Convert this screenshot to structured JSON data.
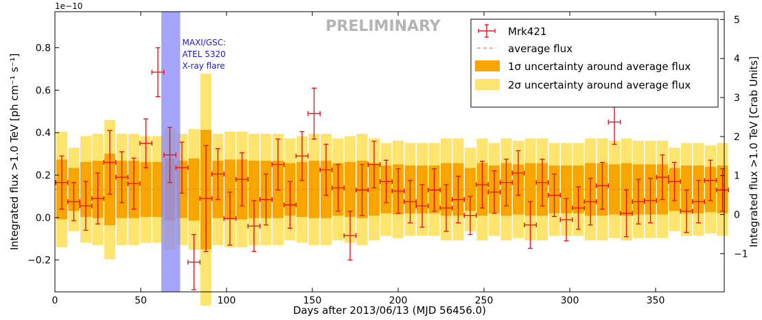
{
  "chart_data": {
    "type": "scatter",
    "title": "",
    "watermark": "PRELIMINARY",
    "xlabel": "Days after 2013/06/13 (MJD 56456.0)",
    "ylabel_left": "Integrated flux >1.0 TeV [ph cm⁻¹ s⁻¹]",
    "ylabel_right": "Integrated flux >1.0 TeV [Crab Units]",
    "y_exponent_label": "1e−10",
    "xlim": [
      0,
      390
    ],
    "ylim": [
      -0.35,
      0.97
    ],
    "ylim_crab": [
      -1.98,
      5.2
    ],
    "x_ticks": [
      0,
      50,
      100,
      150,
      200,
      250,
      300,
      350
    ],
    "y_ticks": [
      -0.2,
      0.0,
      0.2,
      0.4,
      0.6,
      0.8
    ],
    "y_ticks_labels": [
      "−0.2",
      "0.0",
      "0.2",
      "0.4",
      "0.6",
      "0.8"
    ],
    "y_ticks_crab": [
      -1,
      0,
      1,
      2,
      3,
      4,
      5
    ],
    "y_ticks_crab_labels": [
      "−1",
      "0",
      "1",
      "2",
      "3",
      "4",
      "5"
    ],
    "average_flux": 0.133,
    "band_1sigma": [
      0.005,
      0.26
    ],
    "band_2sigma": [
      -0.115,
      0.38
    ],
    "flare_region": {
      "x": [
        62,
        73
      ],
      "label": [
        "MAXI/GSC:",
        "ATEL 5320",
        "X-ray flare"
      ]
    },
    "legend": {
      "position": "top-right",
      "entries": [
        {
          "key": "marker",
          "label": "Mrk421"
        },
        {
          "key": "dashed",
          "label": "average flux"
        },
        {
          "key": "band1",
          "label": "1σ uncertainty around average flux"
        },
        {
          "key": "band2",
          "label": "2σ uncertainty around average flux"
        }
      ]
    },
    "colors": {
      "points": "#e8141c",
      "average": "#ef7c5e",
      "band1": "#f9a500",
      "band2": "#fde46e",
      "flare": "#8a8af8",
      "flare_text": "#1818dd",
      "watermark": "#b4b4b4",
      "axis": "#000000"
    },
    "series": [
      {
        "name": "Mrk421",
        "points": [
          {
            "x": 4,
            "y": 0.165,
            "ey": 0.125,
            "ex": 3.5
          },
          {
            "x": 11,
            "y": 0.075,
            "ey": 0.09,
            "ex": 3.5
          },
          {
            "x": 18,
            "y": 0.055,
            "ey": 0.115,
            "ex": 3.5
          },
          {
            "x": 25,
            "y": 0.09,
            "ey": 0.12,
            "ex": 3.5
          },
          {
            "x": 32,
            "y": 0.26,
            "ey": 0.15,
            "ex": 3.5
          },
          {
            "x": 39,
            "y": 0.19,
            "ey": 0.12,
            "ex": 3.5
          },
          {
            "x": 46,
            "y": 0.16,
            "ey": 0.12,
            "ex": 3.5
          },
          {
            "x": 53,
            "y": 0.35,
            "ey": 0.115,
            "ex": 3.5
          },
          {
            "x": 60,
            "y": 0.685,
            "ey": 0.115,
            "ex": 3.5
          },
          {
            "x": 67,
            "y": 0.295,
            "ey": 0.13,
            "ex": 3.5
          },
          {
            "x": 74,
            "y": 0.235,
            "ey": 0.12,
            "ex": 3.5
          },
          {
            "x": 81,
            "y": -0.21,
            "ey": 0.13,
            "ex": 3.5
          },
          {
            "x": 88,
            "y": 0.09,
            "ey": 0.25,
            "ex": 3.5
          },
          {
            "x": 95,
            "y": 0.205,
            "ey": 0.12,
            "ex": 3.5
          },
          {
            "x": 102,
            "y": -0.005,
            "ey": 0.125,
            "ex": 3.5
          },
          {
            "x": 109,
            "y": 0.18,
            "ey": 0.125,
            "ex": 3.5
          },
          {
            "x": 116,
            "y": -0.04,
            "ey": 0.12,
            "ex": 3.5
          },
          {
            "x": 123,
            "y": 0.085,
            "ey": 0.12,
            "ex": 3.5
          },
          {
            "x": 130,
            "y": 0.25,
            "ey": 0.12,
            "ex": 3.5
          },
          {
            "x": 137,
            "y": 0.06,
            "ey": 0.11,
            "ex": 3.5
          },
          {
            "x": 144,
            "y": 0.29,
            "ey": 0.115,
            "ex": 3.5
          },
          {
            "x": 151,
            "y": 0.49,
            "ey": 0.12,
            "ex": 3.5
          },
          {
            "x": 158,
            "y": 0.225,
            "ey": 0.12,
            "ex": 3.5
          },
          {
            "x": 165,
            "y": 0.14,
            "ey": 0.11,
            "ex": 3.5
          },
          {
            "x": 172,
            "y": -0.085,
            "ey": 0.115,
            "ex": 3.5
          },
          {
            "x": 179,
            "y": 0.13,
            "ey": 0.12,
            "ex": 3.5
          },
          {
            "x": 186,
            "y": 0.25,
            "ey": 0.11,
            "ex": 3.5
          },
          {
            "x": 193,
            "y": 0.17,
            "ey": 0.1,
            "ex": 3.5
          },
          {
            "x": 200,
            "y": 0.125,
            "ey": 0.105,
            "ex": 3.5
          },
          {
            "x": 207,
            "y": 0.075,
            "ey": 0.1,
            "ex": 3.5
          },
          {
            "x": 214,
            "y": 0.055,
            "ey": 0.1,
            "ex": 3.5
          },
          {
            "x": 221,
            "y": 0.13,
            "ey": 0.1,
            "ex": 3.5
          },
          {
            "x": 228,
            "y": 0.045,
            "ey": 0.11,
            "ex": 3.5
          },
          {
            "x": 235,
            "y": 0.085,
            "ey": 0.11,
            "ex": 3.5
          },
          {
            "x": 242,
            "y": 0.01,
            "ey": 0.09,
            "ex": 3.5
          },
          {
            "x": 249,
            "y": 0.155,
            "ey": 0.11,
            "ex": 3.5
          },
          {
            "x": 256,
            "y": 0.12,
            "ey": 0.1,
            "ex": 3.5
          },
          {
            "x": 263,
            "y": 0.165,
            "ey": 0.11,
            "ex": 3.5
          },
          {
            "x": 270,
            "y": 0.21,
            "ey": 0.105,
            "ex": 3.5
          },
          {
            "x": 277,
            "y": -0.035,
            "ey": 0.11,
            "ex": 3.5
          },
          {
            "x": 284,
            "y": 0.165,
            "ey": 0.11,
            "ex": 3.5
          },
          {
            "x": 291,
            "y": 0.105,
            "ey": 0.1,
            "ex": 3.5
          },
          {
            "x": 298,
            "y": -0.01,
            "ey": 0.1,
            "ex": 3.5
          },
          {
            "x": 305,
            "y": 0.045,
            "ey": 0.1,
            "ex": 3.5
          },
          {
            "x": 312,
            "y": 0.075,
            "ey": 0.11,
            "ex": 3.5
          },
          {
            "x": 319,
            "y": 0.15,
            "ey": 0.11,
            "ex": 3.5
          },
          {
            "x": 326,
            "y": 0.45,
            "ey": 0.105,
            "ex": 3.5
          },
          {
            "x": 333,
            "y": 0.02,
            "ey": 0.11,
            "ex": 3.5
          },
          {
            "x": 340,
            "y": 0.075,
            "ey": 0.105,
            "ex": 3.5
          },
          {
            "x": 347,
            "y": 0.08,
            "ey": 0.105,
            "ex": 3.5
          },
          {
            "x": 354,
            "y": 0.19,
            "ey": 0.105,
            "ex": 3.5
          },
          {
            "x": 361,
            "y": 0.17,
            "ey": 0.09,
            "ex": 3.5
          },
          {
            "x": 368,
            "y": 0.03,
            "ey": 0.1,
            "ex": 3.5
          },
          {
            "x": 375,
            "y": 0.075,
            "ey": 0.1,
            "ex": 3.5
          },
          {
            "x": 382,
            "y": 0.175,
            "ey": 0.095,
            "ex": 3.5
          },
          {
            "x": 389,
            "y": 0.13,
            "ey": 0.1,
            "ex": 3.5
          }
        ]
      }
    ]
  }
}
